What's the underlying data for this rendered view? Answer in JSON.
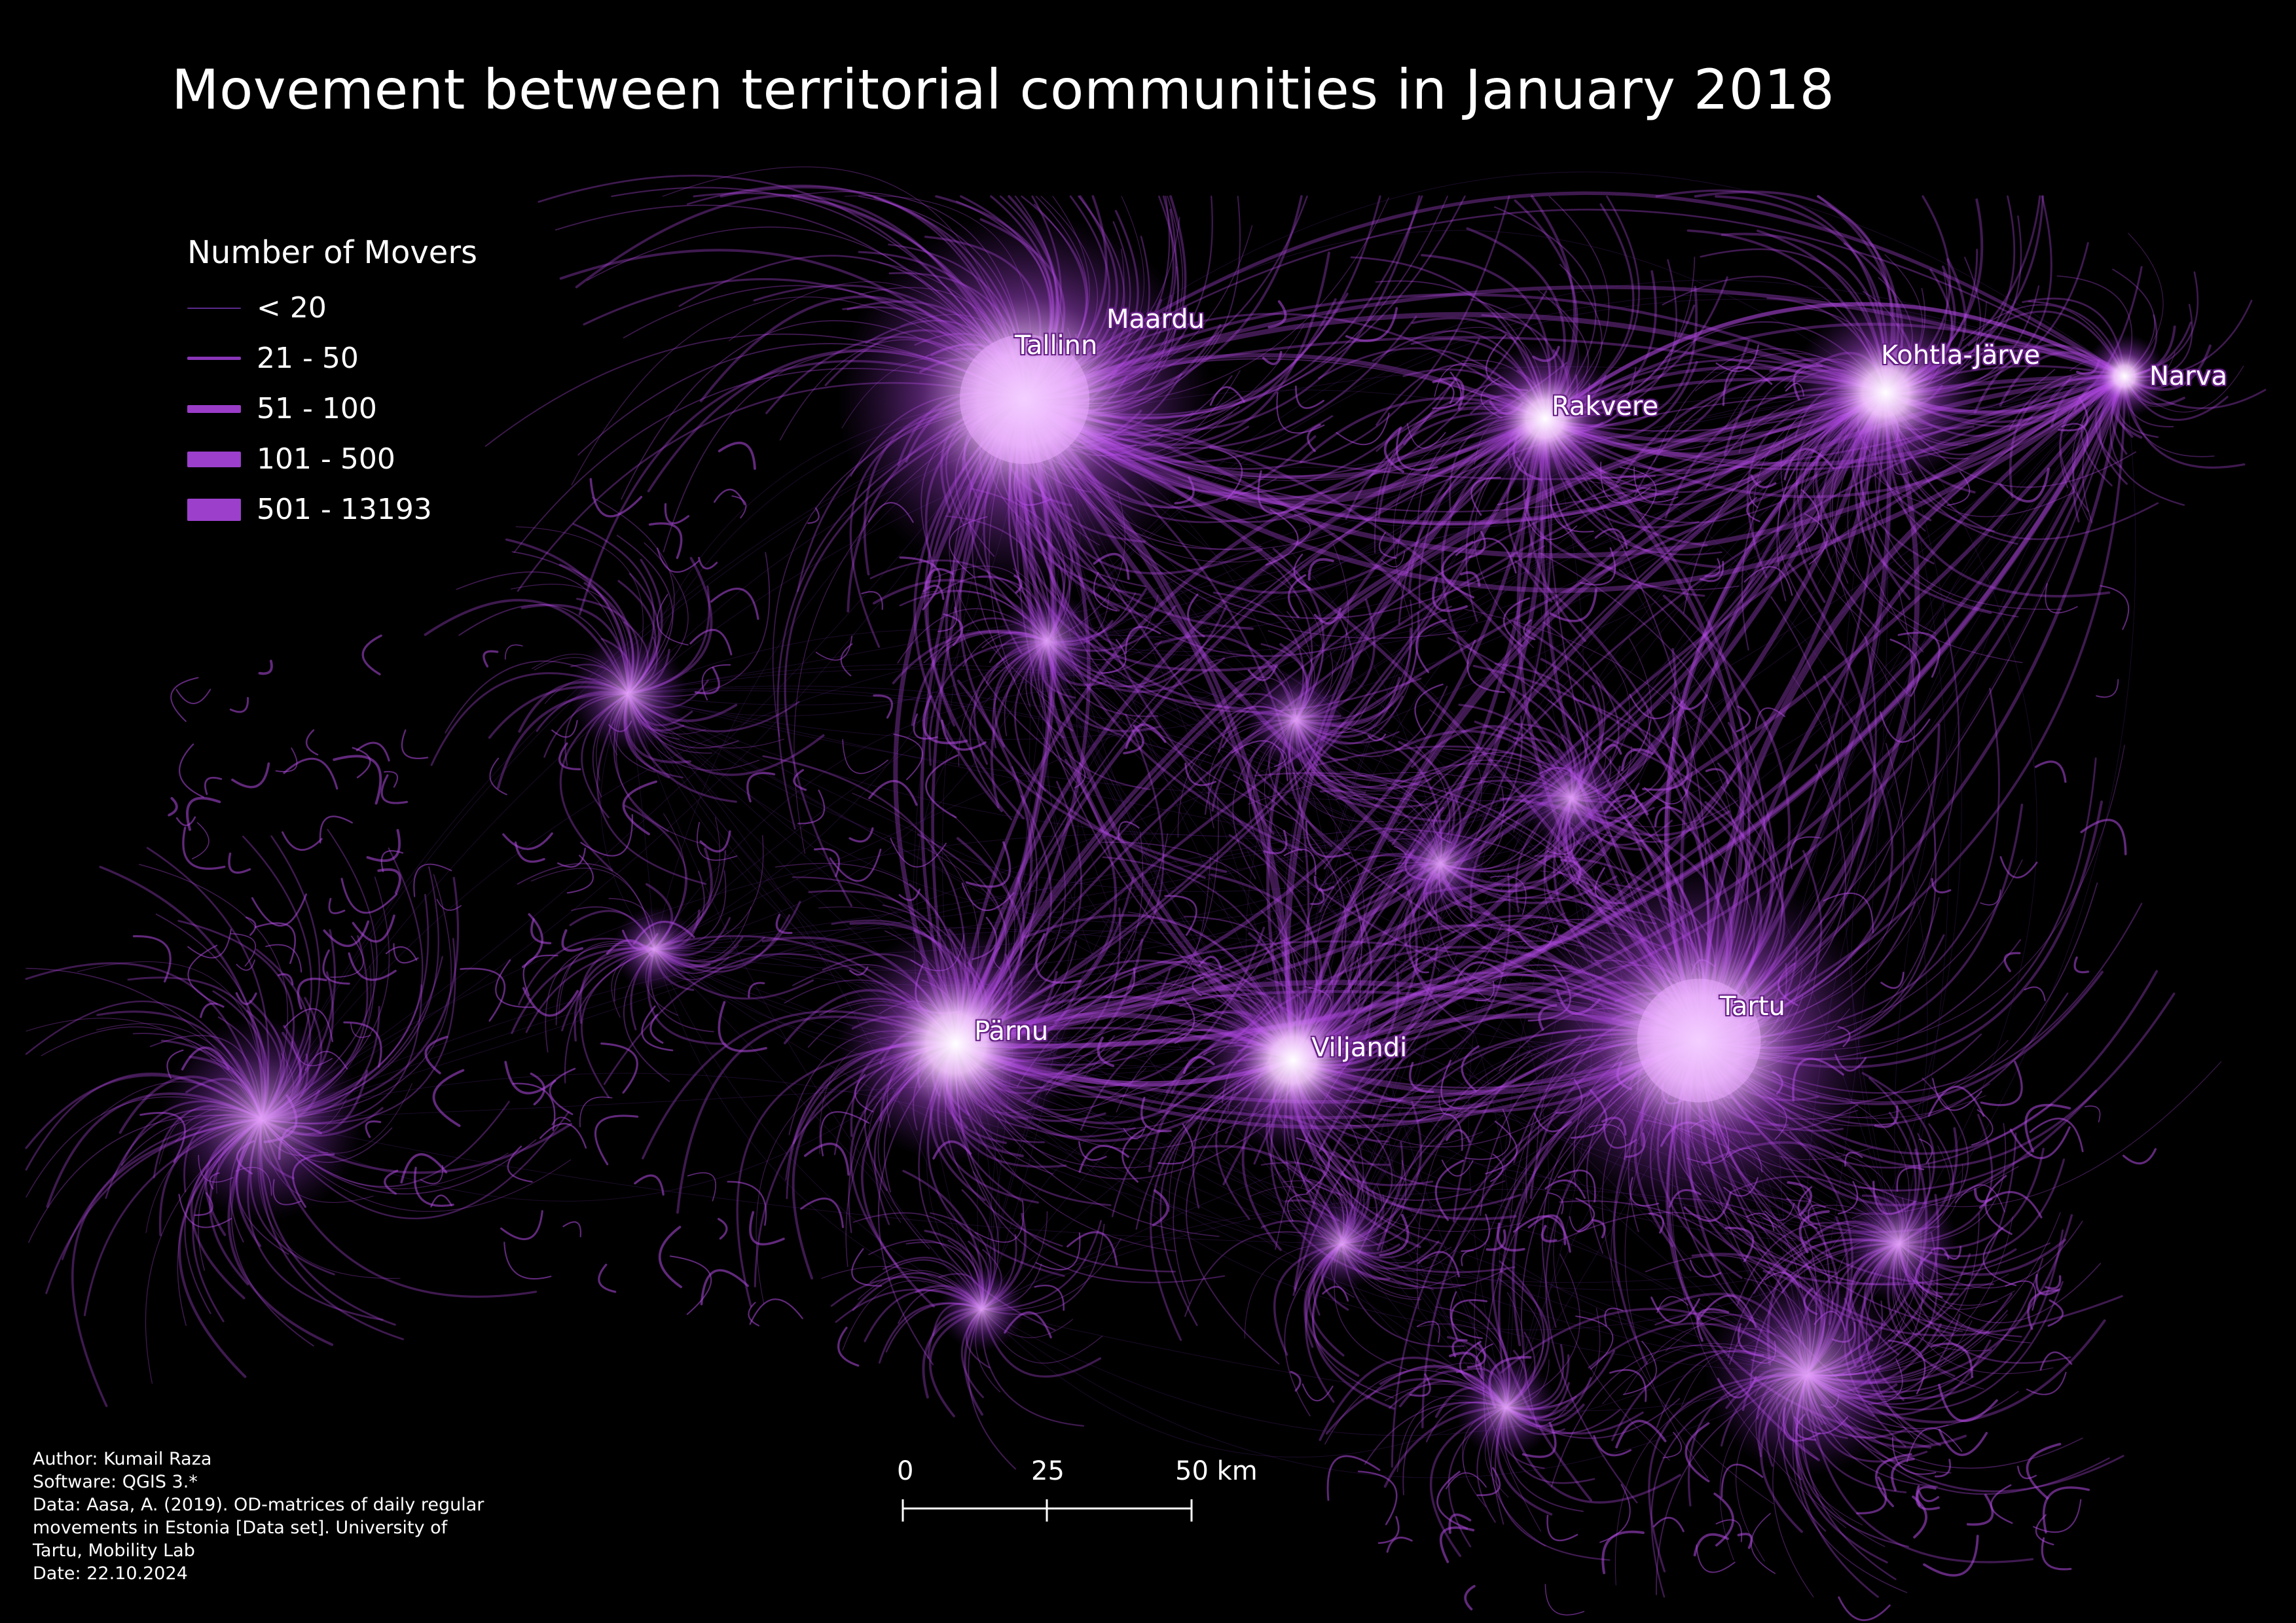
{
  "title": "Movement between territorial communities in January 2018",
  "legend": {
    "title": "Number of Movers",
    "items": [
      {
        "label": "< 20",
        "color": "#5b2a8c",
        "weight": 1
      },
      {
        "label": "21 - 50",
        "color": "#8a35b8",
        "weight": 2
      },
      {
        "label": "51 - 100",
        "color": "#9a3cc8",
        "weight": 3
      },
      {
        "label": "101 - 500",
        "color": "#9b3fcc",
        "weight": 4
      },
      {
        "label": "501 - 13193",
        "color": "#9c40cc",
        "weight": 5
      }
    ]
  },
  "cities": [
    {
      "name": "Tallinn",
      "hub": true
    },
    {
      "name": "Maardu",
      "hub": false
    },
    {
      "name": "Rakvere",
      "hub": true
    },
    {
      "name": "Kohtla-Järve",
      "hub": true
    },
    {
      "name": "Narva",
      "hub": true
    },
    {
      "name": "Pärnu",
      "hub": true
    },
    {
      "name": "Viljandi",
      "hub": true
    },
    {
      "name": "Tartu",
      "hub": true
    }
  ],
  "scale_bar": {
    "ticks": [
      "0",
      "25",
      "50 km"
    ]
  },
  "credits": {
    "lines": [
      "Author: Kumail Raza",
      "Software: QGIS 3.*",
      "Data: Aasa, A. (2019). OD-matrices of daily regular",
      "movements in Estonia [Data set]. University of",
      "Tartu, Mobility Lab",
      "Date: 22.10.2024"
    ]
  },
  "colors": {
    "background": "#000000",
    "flow": "#b44be6",
    "flow_light": "#e9a8ff",
    "hub_core": "#ffffff",
    "text": "#ffffff"
  }
}
